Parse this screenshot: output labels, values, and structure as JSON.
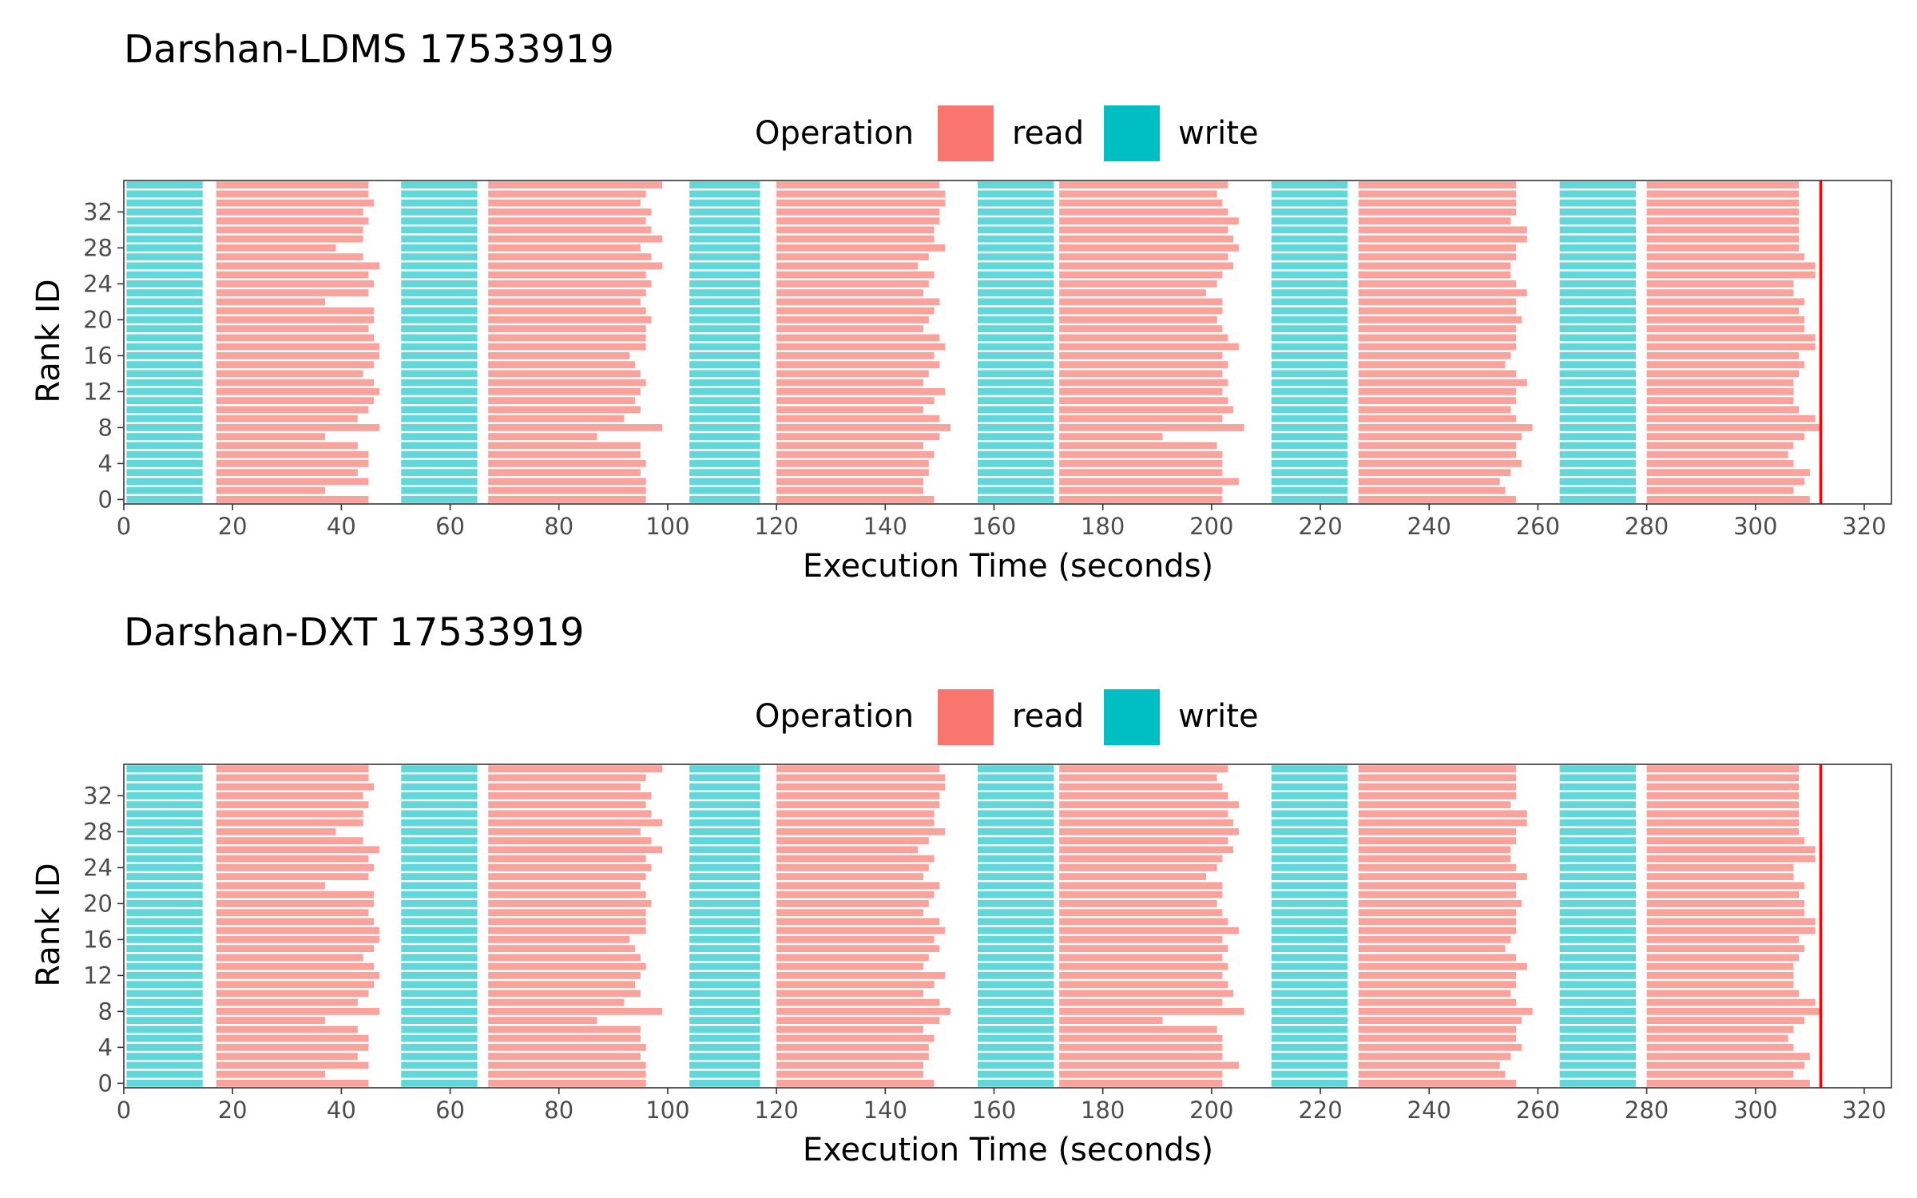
{
  "colors": {
    "read": "#F8766D",
    "write": "#00BFC4",
    "end_line": "#FF0000"
  },
  "chart_data": [
    {
      "type": "timeline",
      "title": "Darshan-LDMS 17533919",
      "xlabel": "Execution Time (seconds)",
      "ylabel": "Rank ID",
      "xlim": [
        0,
        325
      ],
      "ylim": [
        -0.5,
        35.5
      ],
      "x_ticks": [
        0,
        20,
        40,
        60,
        80,
        100,
        120,
        140,
        160,
        180,
        200,
        220,
        240,
        260,
        280,
        300,
        320
      ],
      "y_ticks": [
        0,
        4,
        8,
        12,
        16,
        20,
        24,
        28,
        32
      ],
      "x_tick_labels": [
        "0",
        "20",
        "40",
        "60",
        "80",
        "100",
        "120",
        "140",
        "160",
        "180",
        "200",
        "220",
        "240",
        "260",
        "280",
        "300",
        "320"
      ],
      "y_tick_labels": [
        "0",
        "4",
        "8",
        "12",
        "16",
        "20",
        "24",
        "28",
        "32"
      ],
      "grid": false,
      "legend": {
        "title": "Operation",
        "position": "top",
        "entries": [
          "read",
          "write"
        ]
      },
      "ranks": 36,
      "end_time": 312,
      "write_phases": [
        {
          "start": 0.5,
          "end": 14.5
        },
        {
          "start": 51,
          "end": 65
        },
        {
          "start": 104,
          "end": 117
        },
        {
          "start": 157,
          "end": 171
        },
        {
          "start": 211,
          "end": 225
        },
        {
          "start": 264,
          "end": 278
        }
      ],
      "read_phases": [
        {
          "start": 17,
          "ends": [
            45,
            37,
            45,
            43,
            45,
            45,
            43,
            37,
            47,
            43,
            45,
            46,
            47,
            46,
            44,
            46,
            47,
            47,
            46,
            45,
            46,
            46,
            37,
            45,
            46,
            45,
            47,
            44,
            39,
            44,
            44,
            45,
            44,
            46,
            45,
            45
          ]
        },
        {
          "start": 67,
          "ends": [
            96,
            96,
            96,
            95,
            96,
            95,
            95,
            87,
            99,
            92,
            95,
            94,
            95,
            96,
            95,
            94,
            93,
            96,
            96,
            96,
            97,
            96,
            95,
            96,
            97,
            96,
            99,
            97,
            95,
            99,
            97,
            96,
            97,
            95,
            96,
            99
          ]
        },
        {
          "start": 120,
          "ends": [
            149,
            147,
            147,
            148,
            148,
            149,
            147,
            150,
            152,
            150,
            147,
            149,
            151,
            147,
            148,
            150,
            149,
            151,
            150,
            147,
            148,
            149,
            150,
            147,
            148,
            149,
            146,
            148,
            151,
            149,
            149,
            150,
            150,
            151,
            151,
            150
          ]
        },
        {
          "start": 172,
          "ends": [
            202,
            202,
            205,
            202,
            202,
            202,
            201,
            191,
            206,
            202,
            204,
            203,
            202,
            203,
            202,
            203,
            202,
            205,
            203,
            202,
            201,
            202,
            202,
            199,
            201,
            202,
            204,
            203,
            205,
            204,
            203,
            205,
            203,
            202,
            201,
            203
          ]
        },
        {
          "start": 227,
          "ends": [
            256,
            254,
            253,
            255,
            257,
            256,
            256,
            257,
            259,
            256,
            255,
            256,
            256,
            258,
            256,
            254,
            255,
            256,
            256,
            256,
            257,
            256,
            256,
            258,
            256,
            255,
            255,
            256,
            256,
            258,
            258,
            255,
            256,
            256,
            256,
            256
          ]
        },
        {
          "start": 280,
          "ends": [
            310,
            307,
            309,
            310,
            307,
            306,
            307,
            309,
            312,
            311,
            308,
            307,
            307,
            307,
            308,
            309,
            308,
            311,
            311,
            309,
            309,
            308,
            309,
            307,
            307,
            311,
            311,
            309,
            308,
            308,
            308,
            308,
            308,
            308,
            308,
            308
          ]
        }
      ]
    },
    {
      "type": "timeline",
      "title": "Darshan-DXT 17533919",
      "xlabel": "Execution Time (seconds)",
      "ylabel": "Rank ID",
      "xlim": [
        0,
        325
      ],
      "ylim": [
        -0.5,
        35.5
      ],
      "x_ticks": [
        0,
        20,
        40,
        60,
        80,
        100,
        120,
        140,
        160,
        180,
        200,
        220,
        240,
        260,
        280,
        300,
        320
      ],
      "y_ticks": [
        0,
        4,
        8,
        12,
        16,
        20,
        24,
        28,
        32
      ],
      "x_tick_labels": [
        "0",
        "20",
        "40",
        "60",
        "80",
        "100",
        "120",
        "140",
        "160",
        "180",
        "200",
        "220",
        "240",
        "260",
        "280",
        "300",
        "320"
      ],
      "y_tick_labels": [
        "0",
        "4",
        "8",
        "12",
        "16",
        "20",
        "24",
        "28",
        "32"
      ],
      "grid": false,
      "legend": {
        "title": "Operation",
        "position": "top",
        "entries": [
          "read",
          "write"
        ]
      },
      "ranks": 36,
      "end_time": 312,
      "write_phases": [
        {
          "start": 0.5,
          "end": 14.5
        },
        {
          "start": 51,
          "end": 65
        },
        {
          "start": 104,
          "end": 117
        },
        {
          "start": 157,
          "end": 171
        },
        {
          "start": 211,
          "end": 225
        },
        {
          "start": 264,
          "end": 278
        }
      ],
      "read_phases": [
        {
          "start": 17,
          "ends": [
            45,
            37,
            45,
            43,
            45,
            45,
            43,
            37,
            47,
            43,
            45,
            46,
            47,
            46,
            44,
            46,
            47,
            47,
            46,
            45,
            46,
            46,
            37,
            45,
            46,
            45,
            47,
            44,
            39,
            44,
            44,
            45,
            44,
            46,
            45,
            45
          ]
        },
        {
          "start": 67,
          "ends": [
            96,
            96,
            96,
            95,
            96,
            95,
            95,
            87,
            99,
            92,
            95,
            94,
            95,
            96,
            95,
            94,
            93,
            96,
            96,
            96,
            97,
            96,
            95,
            96,
            97,
            96,
            99,
            97,
            95,
            99,
            97,
            96,
            97,
            95,
            96,
            99
          ]
        },
        {
          "start": 120,
          "ends": [
            149,
            147,
            147,
            148,
            148,
            149,
            147,
            150,
            152,
            150,
            147,
            149,
            151,
            147,
            148,
            150,
            149,
            151,
            150,
            147,
            148,
            149,
            150,
            147,
            148,
            149,
            146,
            148,
            151,
            149,
            149,
            150,
            150,
            151,
            151,
            150
          ]
        },
        {
          "start": 172,
          "ends": [
            202,
            202,
            205,
            202,
            202,
            202,
            201,
            191,
            206,
            202,
            204,
            203,
            202,
            203,
            202,
            203,
            202,
            205,
            203,
            202,
            201,
            202,
            202,
            199,
            201,
            202,
            204,
            203,
            205,
            204,
            203,
            205,
            203,
            202,
            201,
            203
          ]
        },
        {
          "start": 227,
          "ends": [
            256,
            254,
            253,
            255,
            257,
            256,
            256,
            257,
            259,
            256,
            255,
            256,
            256,
            258,
            256,
            254,
            255,
            256,
            256,
            256,
            257,
            256,
            256,
            258,
            256,
            255,
            255,
            256,
            256,
            258,
            258,
            255,
            256,
            256,
            256,
            256
          ]
        },
        {
          "start": 280,
          "ends": [
            310,
            307,
            309,
            310,
            307,
            306,
            307,
            309,
            312,
            311,
            308,
            307,
            307,
            307,
            308,
            309,
            308,
            311,
            311,
            309,
            309,
            308,
            309,
            307,
            307,
            311,
            311,
            309,
            308,
            308,
            308,
            308,
            308,
            308,
            308,
            308
          ]
        }
      ]
    }
  ]
}
